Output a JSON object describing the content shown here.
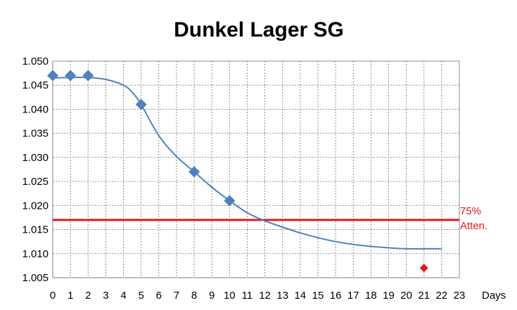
{
  "chart_data": {
    "type": "line",
    "title": "Dunkel Lager SG",
    "xlabel": "Days",
    "ylabel": "",
    "xlim": [
      0,
      23
    ],
    "ylim": [
      1.005,
      1.05
    ],
    "x_ticks": [
      0,
      1,
      2,
      3,
      4,
      5,
      6,
      7,
      8,
      9,
      10,
      11,
      12,
      13,
      14,
      15,
      16,
      17,
      18,
      19,
      20,
      21,
      22,
      23
    ],
    "y_ticks": [
      "1.005",
      "1.010",
      "1.015",
      "1.020",
      "1.025",
      "1.030",
      "1.035",
      "1.040",
      "1.045",
      "1.050"
    ],
    "grid": true,
    "legend": "none",
    "series": [
      {
        "type": "scatter",
        "marker": "diamond",
        "color": "#4f81bd",
        "points": [
          [
            0,
            1.047
          ],
          [
            1,
            1.047
          ],
          [
            2,
            1.047
          ],
          [
            5,
            1.041
          ],
          [
            8,
            1.027
          ],
          [
            10,
            1.021
          ]
        ]
      },
      {
        "type": "line",
        "color": "#4f81bd",
        "points": [
          [
            0,
            1.0465
          ],
          [
            1,
            1.0466
          ],
          [
            2,
            1.0466
          ],
          [
            3,
            1.0462
          ],
          [
            4,
            1.045
          ],
          [
            4.5,
            1.0435
          ],
          [
            5,
            1.041
          ],
          [
            6,
            1.0345
          ],
          [
            7,
            1.0302
          ],
          [
            8,
            1.027
          ],
          [
            9,
            1.0238
          ],
          [
            10,
            1.021
          ],
          [
            11,
            1.0185
          ],
          [
            12,
            1.0168
          ],
          [
            13,
            1.0155
          ],
          [
            14,
            1.0143
          ],
          [
            15,
            1.0133
          ],
          [
            16,
            1.0125
          ],
          [
            17,
            1.0119
          ],
          [
            18,
            1.0115
          ],
          [
            19,
            1.0112
          ],
          [
            20,
            1.011
          ],
          [
            21,
            1.011
          ],
          [
            22,
            1.011
          ]
        ]
      },
      {
        "type": "scatter",
        "marker": "diamond",
        "color": "#e31a1c",
        "points": [
          [
            21,
            1.007
          ]
        ]
      }
    ],
    "reference_lines": [
      {
        "y": 1.017,
        "color": "#e31a1c",
        "label_lines": [
          "75%",
          "Atten."
        ]
      }
    ]
  }
}
